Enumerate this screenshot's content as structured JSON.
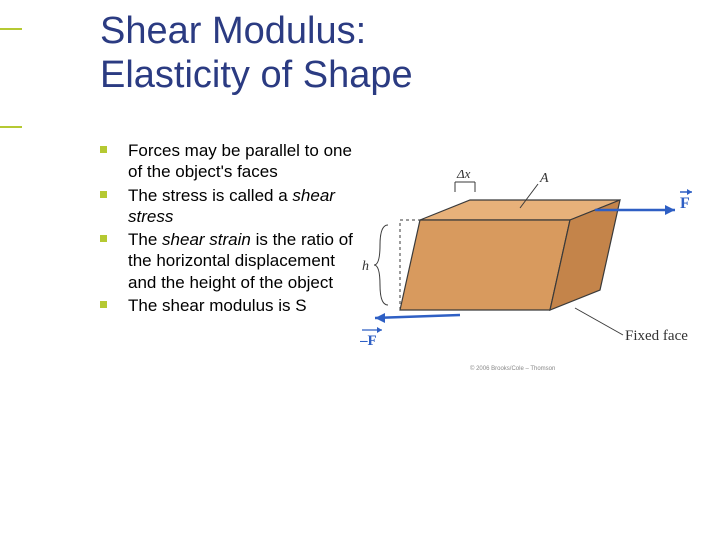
{
  "accent_color": "#b5c932",
  "title_color": "#2b3b82",
  "bullet_color": "#b5c932",
  "text_color": "#000000",
  "title": {
    "line1": "Shear Modulus:",
    "line2": "Elasticity of Shape"
  },
  "bullets": [
    {
      "segments": [
        {
          "text": "Forces may be parallel to one of the object's faces",
          "italic": false
        }
      ]
    },
    {
      "segments": [
        {
          "text": "The stress is called a ",
          "italic": false
        },
        {
          "text": "shear stress",
          "italic": true
        }
      ]
    },
    {
      "segments": [
        {
          "text": "The ",
          "italic": false
        },
        {
          "text": "shear strain",
          "italic": true
        },
        {
          "text": " is the ratio of the horizontal displacement and the height of the object",
          "italic": false
        }
      ]
    },
    {
      "segments": [
        {
          "text": "The shear modulus is S",
          "italic": false
        }
      ]
    }
  ],
  "diagram": {
    "labels": {
      "dx": "Δx",
      "A": "A",
      "F": "F",
      "minusF": "–F",
      "h": "h",
      "fixed": "Fixed face"
    },
    "colors": {
      "box_top": "#e7b17a",
      "box_front": "#d89a5e",
      "box_side": "#c4844a",
      "outline": "#3a3a3a",
      "vector": "#2e5fc4",
      "label": "#333333"
    },
    "copyright": "© 2006 Brooks/Cole – Thomson"
  }
}
